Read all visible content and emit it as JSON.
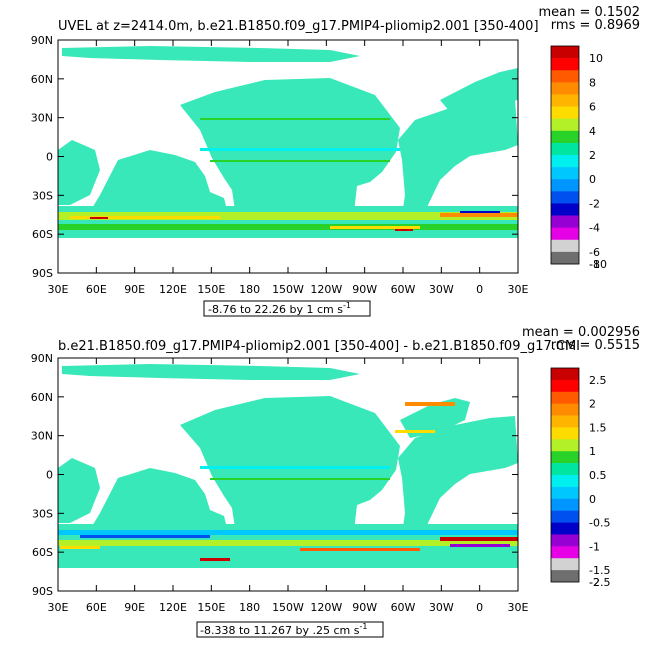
{
  "chart_data": [
    {
      "type": "heatmap",
      "title": "UVEL at z=2414.0m, b.e21.B1850.f09_g17.PMIP4-pliomip2.001 [350-400]",
      "stats": {
        "mean": "mean = 0.1502",
        "rms": "rms = 0.8969"
      },
      "xticks": [
        "30E",
        "60E",
        "90E",
        "120E",
        "150E",
        "180",
        "150W",
        "120W",
        "90W",
        "60W",
        "30W",
        "0",
        "30E"
      ],
      "yticks": [
        "90N",
        "60N",
        "30N",
        "0",
        "30S",
        "60S",
        "90S"
      ],
      "range_label": "-8.76 to 22.26 by 1 cm s",
      "range_sup": "-1",
      "colorbar": {
        "levels": [
          "10",
          "8",
          "6",
          "4",
          "2",
          "0",
          "-2",
          "-4",
          "-6",
          "-8",
          "-10"
        ],
        "colors": [
          "#c80000",
          "#ff0000",
          "#ff5a00",
          "#ff8c00",
          "#ffb400",
          "#ffdc00",
          "#b4f028",
          "#28d228",
          "#00e6a0",
          "#00f0f0",
          "#00c8ff",
          "#0096ff",
          "#0050f0",
          "#0000c8",
          "#9600d2",
          "#e600e6",
          "#d2d2d2",
          "#6e6e6e"
        ]
      }
    },
    {
      "type": "heatmap",
      "title": "b.e21.B1850.f09_g17.PMIP4-pliomip2.001 [350-400] - b.e21.B1850.f09_g17.CMI",
      "stats": {
        "mean": "mean = 0.002956",
        "rms": "rms = 0.5515"
      },
      "xticks": [
        "30E",
        "60E",
        "90E",
        "120E",
        "150E",
        "180",
        "150W",
        "120W",
        "90W",
        "60W",
        "30W",
        "0",
        "30E"
      ],
      "yticks": [
        "90N",
        "60N",
        "30N",
        "0",
        "30S",
        "60S",
        "90S"
      ],
      "range_label": "-8.338 to 11.267 by .25 cm s",
      "range_sup": "-1",
      "colorbar": {
        "levels": [
          "2.5",
          "2",
          "1.5",
          "1",
          "0.5",
          "0",
          "-0.5",
          "-1",
          "-1.5",
          "-2",
          "-2.5"
        ],
        "colors": [
          "#c80000",
          "#ff0000",
          "#ff5a00",
          "#ff8c00",
          "#ffb400",
          "#ffdc00",
          "#b4f028",
          "#28d228",
          "#00e6a0",
          "#00f0f0",
          "#00c8ff",
          "#0096ff",
          "#0050f0",
          "#0000c8",
          "#9600d2",
          "#e600e6",
          "#d2d2d2",
          "#6e6e6e"
        ]
      }
    }
  ],
  "colors": {
    "ocean": "#38e8b8",
    "land": "#ffffff"
  }
}
